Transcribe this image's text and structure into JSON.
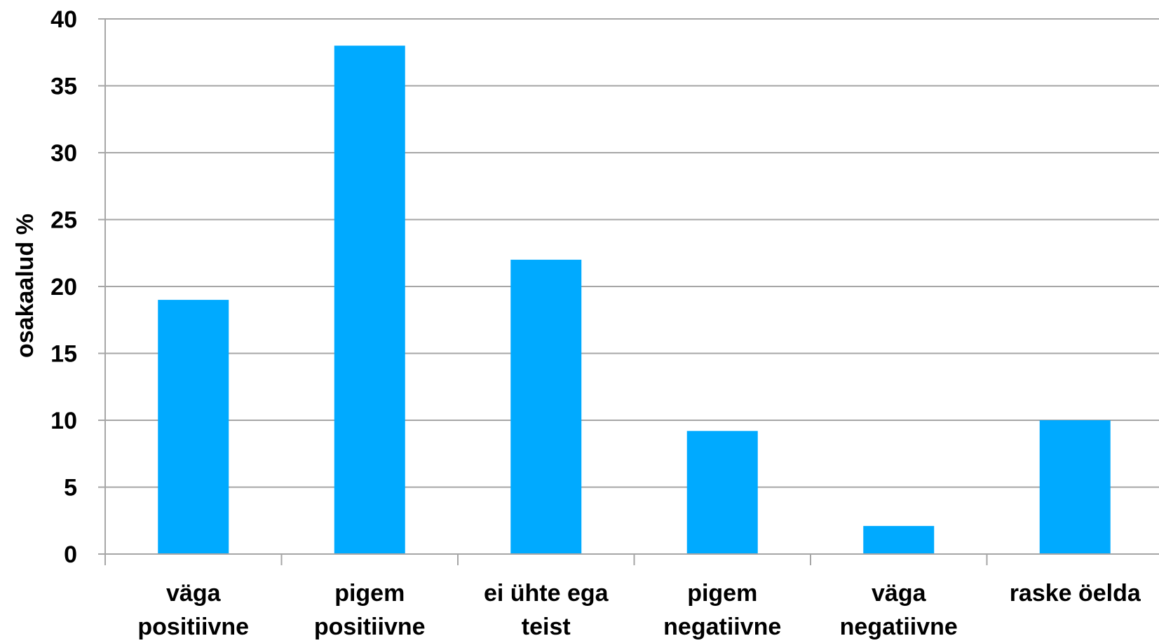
{
  "chart_data": {
    "type": "bar",
    "categories": [
      [
        "väga",
        "positiivne"
      ],
      [
        "pigem",
        "positiivne"
      ],
      [
        "ei ühte ega",
        "teist"
      ],
      [
        "pigem",
        "negatiivne"
      ],
      [
        "väga",
        "negatiivne"
      ],
      [
        "raske öelda"
      ]
    ],
    "values": [
      19,
      38,
      22,
      9.2,
      2.1,
      10
    ],
    "ylabel": "osakaalud %",
    "ylim": [
      0,
      40
    ],
    "yticks": [
      0,
      5,
      10,
      15,
      20,
      25,
      30,
      35,
      40
    ],
    "grid": true,
    "bar_color": "#00AAFF",
    "grid_color": "#A6A6A6"
  }
}
